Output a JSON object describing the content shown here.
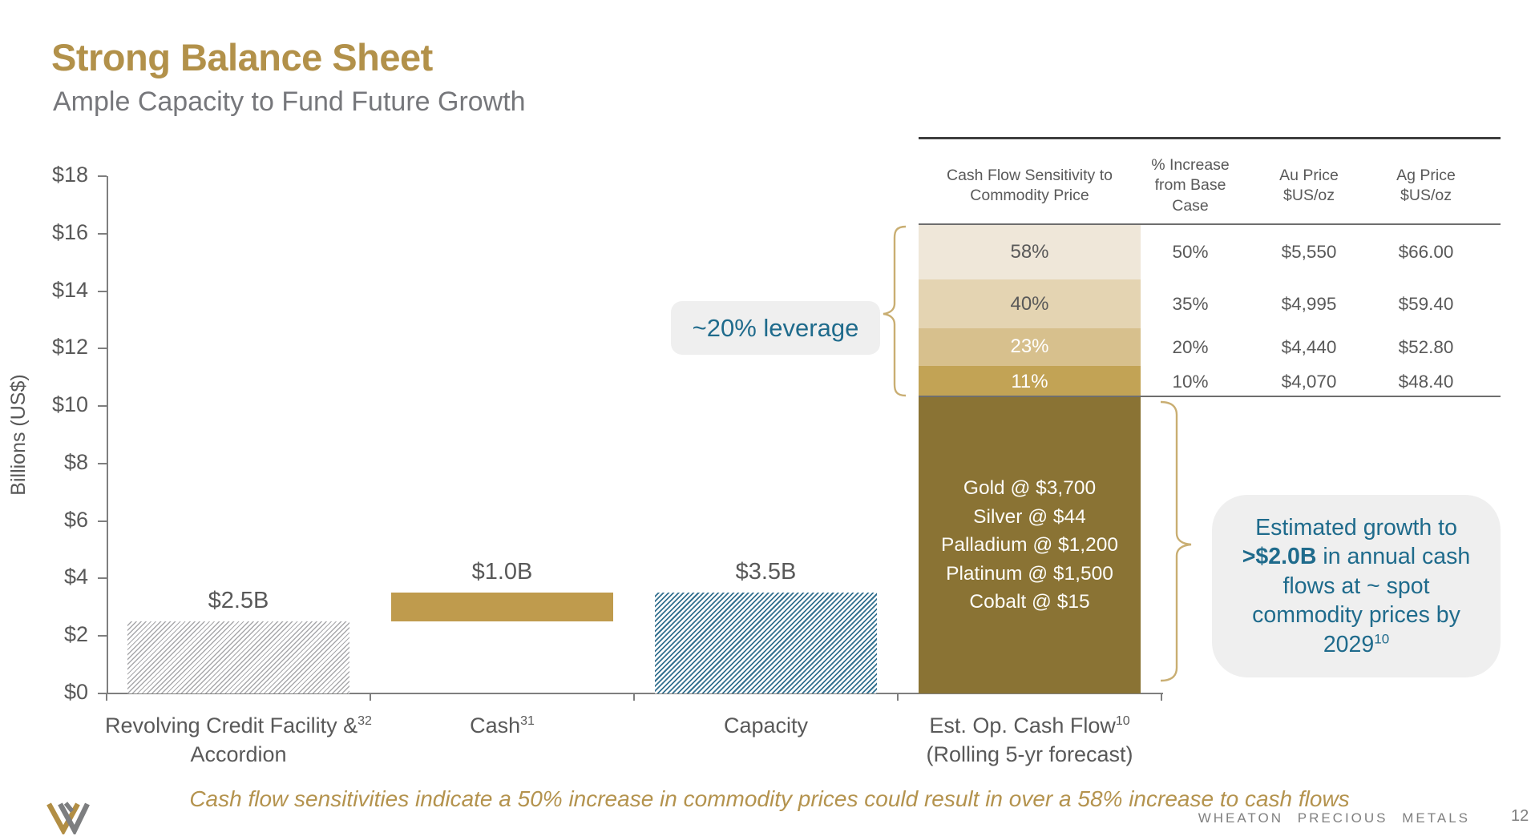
{
  "header": {
    "title": "Strong Balance Sheet",
    "subtitle": "Ample Capacity to Fund Future Growth"
  },
  "colors": {
    "title_gold": "#b2914a",
    "cash_bar_gold": "#bf9b4d",
    "dark_gold_bar": "#8a7334",
    "hatch_blue": "#33708f",
    "hatch_gray": "#a8a8ab",
    "accent_blue_text": "#1f6b8c",
    "callout_background": "#efefef",
    "body_gray_text": "#595959"
  },
  "chart_data": {
    "type": "bar",
    "title": "",
    "xlabel": "",
    "ylabel": "Billions (US$)",
    "ylim": [
      0,
      18
    ],
    "grid": false,
    "yticks": [
      {
        "label": "$0",
        "value": 0
      },
      {
        "label": "$2",
        "value": 2
      },
      {
        "label": "$4",
        "value": 4
      },
      {
        "label": "$6",
        "value": 6
      },
      {
        "label": "$8",
        "value": 8
      },
      {
        "label": "$10",
        "value": 10
      },
      {
        "label": "$12",
        "value": 12
      },
      {
        "label": "$14",
        "value": 14
      },
      {
        "label": "$16",
        "value": 16
      },
      {
        "label": "$18",
        "value": 18
      }
    ],
    "categories": [
      {
        "line1": "Revolving Credit Facility &",
        "sup": "32",
        "line2": "Accordion"
      },
      {
        "line1": "Cash",
        "sup": "31",
        "line2": ""
      },
      {
        "line1": "Capacity",
        "sup": "",
        "line2": ""
      },
      {
        "line1": "Est. Op. Cash Flow",
        "sup": "10",
        "line2": "(Rolling 5-yr forecast)"
      }
    ],
    "bars": [
      {
        "name": "revolving-credit-facility",
        "from": 0,
        "to": 2.5,
        "style": "hatch-gray",
        "data_label": "$2.5B"
      },
      {
        "name": "cash",
        "from": 2.5,
        "to": 3.5,
        "style": "solid-gold",
        "data_label": "$1.0B"
      },
      {
        "name": "capacity",
        "from": 0,
        "to": 3.5,
        "style": "hatch-blue",
        "data_label": "$3.5B"
      },
      {
        "name": "est-op-cash-flow",
        "from": 0,
        "to": 10.3,
        "style": "solid-darkgold",
        "data_label": "",
        "annotation_lines": [
          "Gold @ $3,700",
          "Silver @ $44",
          "Palladium @ $1,200",
          "Platinum @ $1,500",
          "Cobalt @ $15"
        ],
        "segments": [
          {
            "label": "11%",
            "from": 10.3,
            "to": 11.4,
            "color": "#c2a355",
            "text_color": "#ffffff"
          },
          {
            "label": "23%",
            "from": 11.4,
            "to": 12.7,
            "color": "#d7c08d",
            "text_color": "#ffffff"
          },
          {
            "label": "40%",
            "from": 12.7,
            "to": 14.4,
            "color": "#e4d4b2",
            "text_color": "#595959"
          },
          {
            "label": "58%",
            "from": 14.4,
            "to": 16.3,
            "color": "#efe7d9",
            "text_color": "#595959"
          }
        ]
      }
    ]
  },
  "table": {
    "headers": [
      "Cash Flow Sensitivity to\nCommodity Price",
      "% Increase\nfrom Base\nCase",
      "Au Price\n$US/oz",
      "Ag Price\n$US/oz"
    ],
    "rows": [
      {
        "sensitivity": "58%",
        "increase": "50%",
        "au": "$5,550",
        "ag": "$66.00"
      },
      {
        "sensitivity": "40%",
        "increase": "35%",
        "au": "$4,995",
        "ag": "$59.40"
      },
      {
        "sensitivity": "23%",
        "increase": "20%",
        "au": "$4,440",
        "ag": "$52.80"
      },
      {
        "sensitivity": "11%",
        "increase": "10%",
        "au": "$4,070",
        "ag": "$48.40"
      }
    ]
  },
  "leverage": {
    "label": "~20% leverage"
  },
  "callout": {
    "pre": "Estimated growth to ",
    "bold": ">$2.0B",
    "post": " in annual cash flows at ~ spot commodity prices by 2029",
    "sup": "10"
  },
  "footnote": {
    "text": "Cash flow sensitivities indicate a 50% increase in commodity prices could result in over a 58% increase to cash flows"
  },
  "footer": {
    "brand": "WHEATON PRECIOUS METALS",
    "page": "12"
  }
}
